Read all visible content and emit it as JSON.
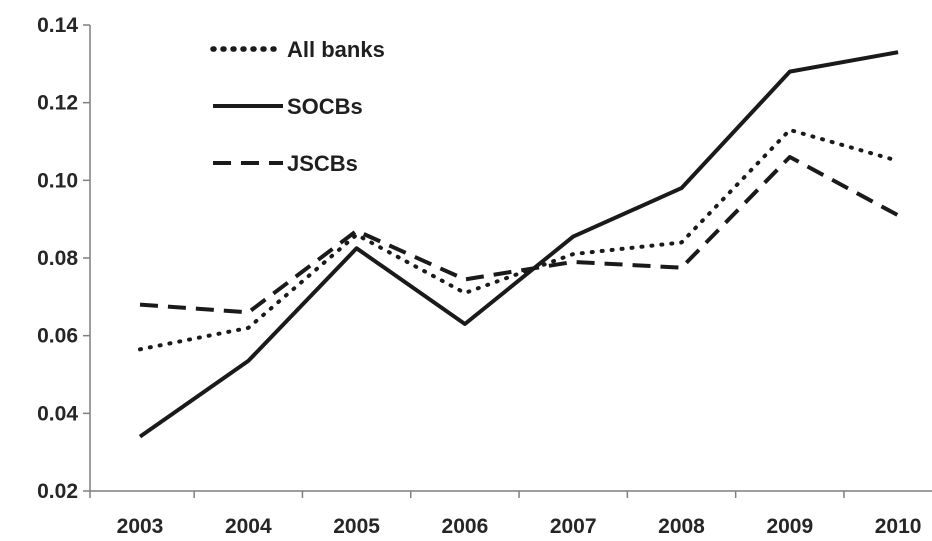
{
  "chart_data": {
    "type": "line",
    "title": "",
    "xlabel": "",
    "ylabel": "",
    "categories": [
      "2003",
      "2004",
      "2005",
      "2006",
      "2007",
      "2008",
      "2009",
      "2010"
    ],
    "ylim": [
      0.02,
      0.14
    ],
    "yticks": [
      "0.02",
      "0.04",
      "0.06",
      "0.08",
      "0.10",
      "0.12",
      "0.14"
    ],
    "grid": false,
    "legend_position": "top-left",
    "series": [
      {
        "name": "All banks",
        "style": "dotted",
        "color": "#1a1a1a",
        "values": [
          0.0565,
          0.062,
          0.086,
          0.071,
          0.081,
          0.084,
          0.113,
          0.105
        ]
      },
      {
        "name": "SOCBs",
        "style": "solid",
        "color": "#1a1a1a",
        "values": [
          0.034,
          0.0535,
          0.0825,
          0.063,
          0.0855,
          0.098,
          0.128,
          0.133
        ]
      },
      {
        "name": "JSCBs",
        "style": "dashed",
        "color": "#1a1a1a",
        "values": [
          0.068,
          0.066,
          0.087,
          0.0745,
          0.079,
          0.0775,
          0.106,
          0.091
        ]
      }
    ]
  }
}
